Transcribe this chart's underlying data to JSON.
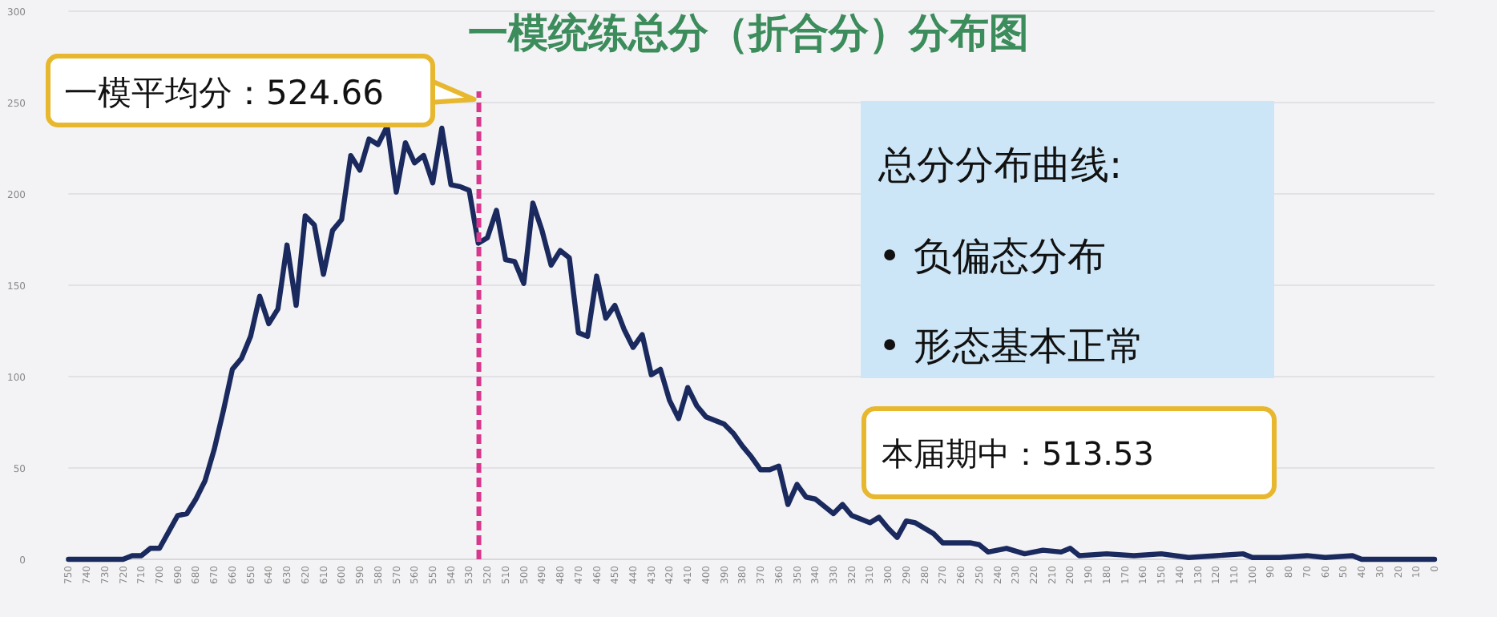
{
  "chart_data": {
    "type": "line",
    "title": "一模统练总分（折合分）分布图",
    "x": [
      750,
      720,
      715,
      710,
      705,
      700,
      695,
      690,
      685,
      680,
      675,
      670,
      665,
      660,
      655,
      650,
      645,
      640,
      635,
      630,
      625,
      620,
      615,
      610,
      605,
      600,
      595,
      590,
      585,
      580,
      575,
      570,
      565,
      560,
      555,
      550,
      545,
      540,
      535,
      530,
      525,
      520,
      515,
      510,
      505,
      500,
      495,
      490,
      485,
      480,
      475,
      470,
      465,
      460,
      455,
      450,
      445,
      440,
      435,
      430,
      425,
      420,
      415,
      410,
      405,
      400,
      390,
      385,
      380,
      375,
      370,
      365,
      360,
      355,
      350,
      345,
      340,
      330,
      325,
      320,
      315,
      310,
      305,
      300,
      295,
      290,
      285,
      275,
      270,
      255,
      250,
      245,
      235,
      225,
      215,
      205,
      200,
      195,
      180,
      165,
      150,
      135,
      120,
      105,
      100,
      85,
      70,
      60,
      45,
      40,
      0
    ],
    "series": [
      {
        "color": "#1b2a5e",
        "values": [
          0,
          0,
          2,
          2,
          6,
          6,
          15,
          24,
          25,
          33,
          43,
          60,
          81,
          104,
          110,
          122,
          144,
          129,
          137,
          172,
          139,
          188,
          183,
          156,
          180,
          186,
          221,
          213,
          230,
          227,
          237,
          201,
          228,
          217,
          221,
          206,
          236,
          205,
          204,
          202,
          173,
          176,
          191,
          164,
          163,
          151,
          195,
          180,
          161,
          169,
          165,
          124,
          122,
          155,
          132,
          139,
          126,
          116,
          123,
          101,
          104,
          87,
          77,
          94,
          84,
          78,
          74,
          69,
          62,
          56,
          49,
          49,
          51,
          30,
          41,
          34,
          33,
          25,
          30,
          24,
          22,
          20,
          23,
          17,
          12,
          21,
          20,
          14,
          9,
          9,
          8,
          4,
          6,
          3,
          5,
          4,
          6,
          2,
          3,
          2,
          3,
          1,
          2,
          3,
          1,
          1,
          2,
          1,
          2,
          0,
          0
        ]
      }
    ],
    "xlim": [
      750,
      0
    ],
    "ylim": [
      0,
      300
    ],
    "xticks": [
      750,
      740,
      730,
      720,
      710,
      700,
      690,
      680,
      670,
      660,
      650,
      640,
      630,
      620,
      610,
      600,
      590,
      580,
      570,
      560,
      550,
      540,
      530,
      520,
      510,
      500,
      490,
      480,
      470,
      460,
      450,
      440,
      430,
      420,
      410,
      400,
      390,
      380,
      370,
      360,
      350,
      340,
      330,
      320,
      310,
      300,
      290,
      280,
      270,
      260,
      250,
      240,
      230,
      220,
      210,
      200,
      190,
      180,
      170,
      160,
      150,
      140,
      130,
      120,
      110,
      100,
      90,
      80,
      70,
      60,
      50,
      40,
      30,
      20,
      10,
      0
    ],
    "yticks": [
      0,
      50,
      100,
      150,
      200,
      250,
      300
    ],
    "grid": "y",
    "ref_lines": [
      {
        "axis": "x",
        "value": 524.66,
        "label": "一模平均分：524.66",
        "color": "#d8388c",
        "line_style": "dashed"
      }
    ],
    "annotations": [
      "总分分布曲线:",
      "•  负偏态分布",
      "•  形态基本正常",
      "本届期中：513.53"
    ]
  }
}
